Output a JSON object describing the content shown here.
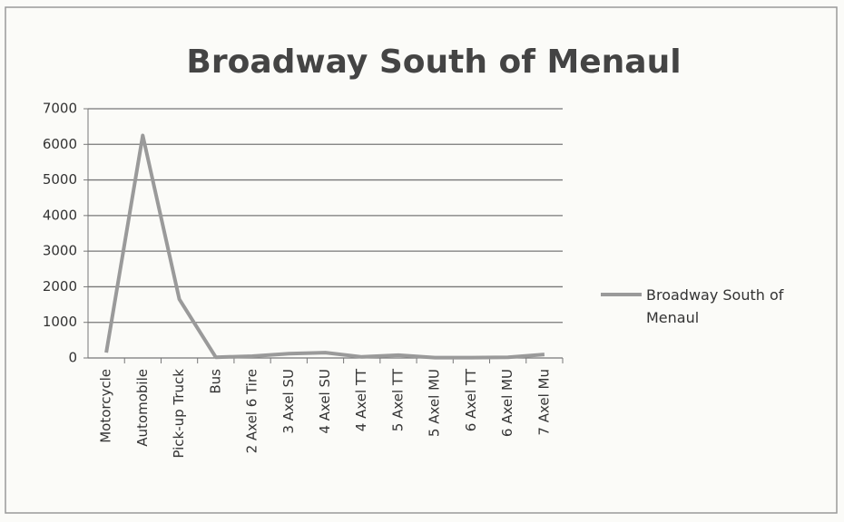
{
  "chart_data": {
    "type": "line",
    "title": "Broadway South of Menaul",
    "categories": [
      "Motorcycle",
      "Automobile",
      "Pick-up Truck",
      "Bus",
      "2 Axel 6 Tire",
      "3 Axel SU",
      "4 Axel SU",
      "4 Axel TT",
      "5 Axel TT",
      "5 Axel MU",
      "6 Axel TT",
      "6 Axel MU",
      "7 Axel Mu"
    ],
    "series": [
      {
        "name": "Broadway South of Menaul",
        "color": "#9a9a9a",
        "values": [
          150,
          6250,
          1650,
          20,
          50,
          120,
          150,
          30,
          80,
          10,
          10,
          20,
          100
        ]
      }
    ],
    "ylim": [
      0,
      7000
    ],
    "yticks": [
      0,
      1000,
      2000,
      3000,
      4000,
      5000,
      6000,
      7000
    ],
    "grid": true,
    "legend": "right"
  }
}
